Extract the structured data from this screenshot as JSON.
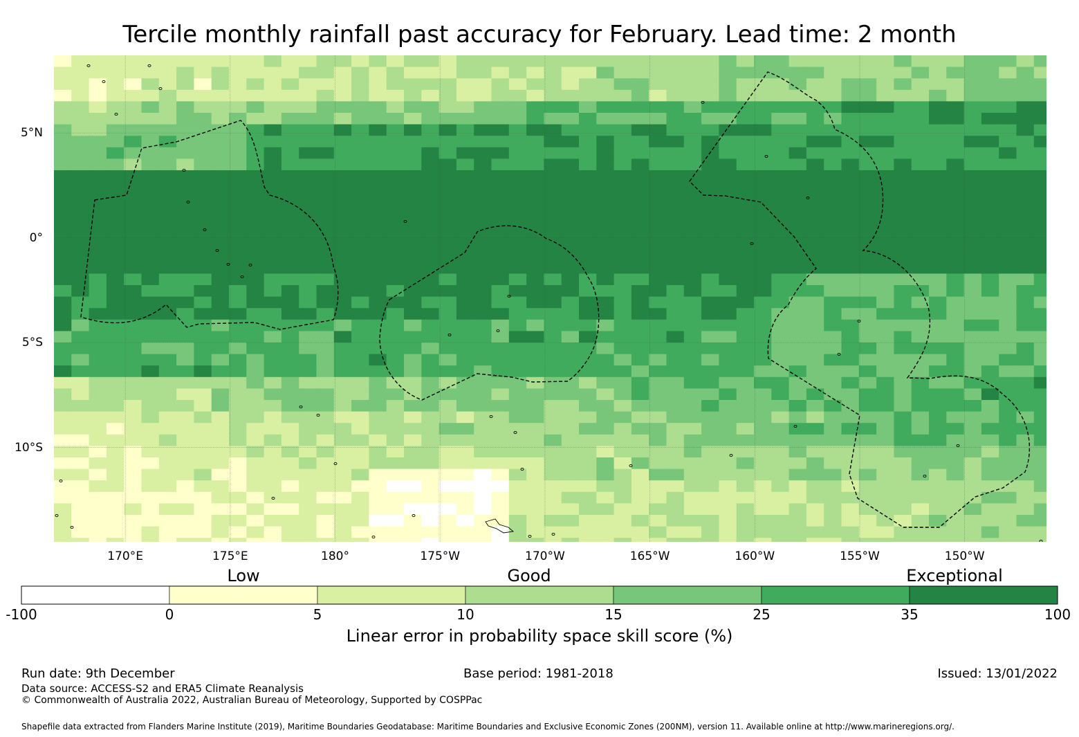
{
  "title": "Tercile monthly rainfall past accuracy for February. Lead time: 2 month",
  "map": {
    "region": "central-pacific",
    "lon_ticks": [
      {
        "lon": 170,
        "label": "170°E"
      },
      {
        "lon": 175,
        "label": "175°E"
      },
      {
        "lon": 180,
        "label": "180°"
      },
      {
        "lon": 185,
        "label": "175°W"
      },
      {
        "lon": 190,
        "label": "170°W"
      },
      {
        "lon": 195,
        "label": "165°W"
      },
      {
        "lon": 200,
        "label": "160°W"
      },
      {
        "lon": 205,
        "label": "155°W"
      },
      {
        "lon": 210,
        "label": "150°W"
      }
    ],
    "lat_ticks": [
      {
        "lat": 5,
        "label": "5°N"
      },
      {
        "lat": 0,
        "label": "0°"
      },
      {
        "lat": -5,
        "label": "5°S"
      },
      {
        "lat": -10,
        "label": "10°S"
      }
    ],
    "lon_range": [
      166.6,
      213.9
    ],
    "lat_range": [
      -14.5,
      8.7
    ],
    "eez_outline_style": "dashed-black"
  },
  "legend": {
    "categories": [
      {
        "label": "Low",
        "value": 3.5
      },
      {
        "label": "Good",
        "value": 12
      },
      {
        "label": "Exceptional",
        "value": 55
      }
    ],
    "ticks": [
      "-100",
      "0",
      "5",
      "10",
      "15",
      "25",
      "35",
      "100"
    ],
    "bins": [
      {
        "from": -100,
        "to": 0,
        "color": "#ffffff"
      },
      {
        "from": 0,
        "to": 5,
        "color": "#ffffcc"
      },
      {
        "from": 5,
        "to": 10,
        "color": "#d9f0a3"
      },
      {
        "from": 10,
        "to": 15,
        "color": "#addd8e"
      },
      {
        "from": 15,
        "to": 25,
        "color": "#78c679"
      },
      {
        "from": 25,
        "to": 35,
        "color": "#41ab5d"
      },
      {
        "from": 35,
        "to": 100,
        "color": "#238443"
      }
    ],
    "label": "Linear error in probability space skill score (%)"
  },
  "footer": {
    "run_date": "Run date: 9th December",
    "base_period": "Base period: 1981-2018",
    "issued": "Issued: 13/01/2022",
    "data_source": "Data source: ACCESS-S2 and ERA5 Climate Reanalysis",
    "copyright": "© Commonwealth of Australia 2022, Australian Bureau of Meteorology, Supported by COSPPac",
    "shapefile_credit": "Shapefile data extracted from Flanders Marine Institute (2019), Maritime Boundaries Geodatabase: Maritime Boundaries and Exclusive Economic Zones (200NM), version 11. Available online at http://www.marineregions.org/."
  }
}
